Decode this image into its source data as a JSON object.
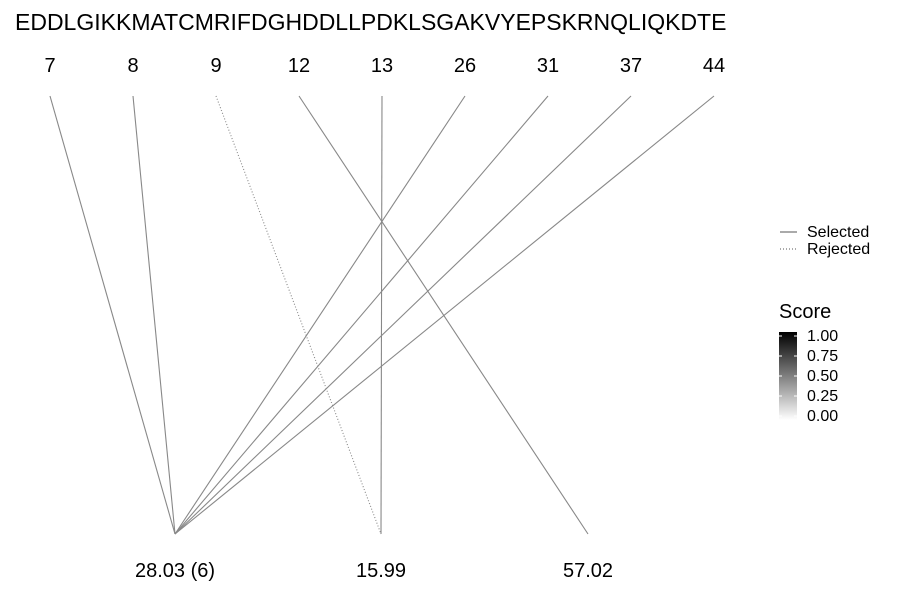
{
  "chart_data": {
    "type": "line",
    "sequence": "EDDLGIKKMATCMRIFDGHDDLLPDKLSGAKVYEPSKRNQLIQKDTE",
    "positions": [
      "7",
      "8",
      "9",
      "12",
      "13",
      "26",
      "31",
      "37",
      "44"
    ],
    "mass_labels": [
      "28.03 (6)",
      "15.99",
      "57.02"
    ],
    "links": [
      {
        "position": "7",
        "mass": "28.03 (6)",
        "status": "Selected",
        "score": 0.5
      },
      {
        "position": "8",
        "mass": "28.03 (6)",
        "status": "Selected",
        "score": 0.5
      },
      {
        "position": "9",
        "mass": "15.99",
        "status": "Rejected",
        "score": 0.5
      },
      {
        "position": "12",
        "mass": "57.02",
        "status": "Selected",
        "score": 0.5
      },
      {
        "position": "13",
        "mass": "15.99",
        "status": "Selected",
        "score": 0.5
      },
      {
        "position": "26",
        "mass": "28.03 (6)",
        "status": "Selected",
        "score": 0.5
      },
      {
        "position": "31",
        "mass": "28.03 (6)",
        "status": "Selected",
        "score": 0.5
      },
      {
        "position": "37",
        "mass": "28.03 (6)",
        "status": "Selected",
        "score": 0.5
      },
      {
        "position": "44",
        "mass": "28.03 (6)",
        "status": "Selected",
        "score": 0.5
      }
    ],
    "legend": {
      "linetype_entries": [
        "Selected",
        "Rejected"
      ],
      "score_title": "Score",
      "score_ticks": [
        "1.00",
        "0.75",
        "0.50",
        "0.25",
        "0.00"
      ],
      "score_range": [
        0,
        1
      ],
      "placement": "right"
    },
    "grid": false
  }
}
